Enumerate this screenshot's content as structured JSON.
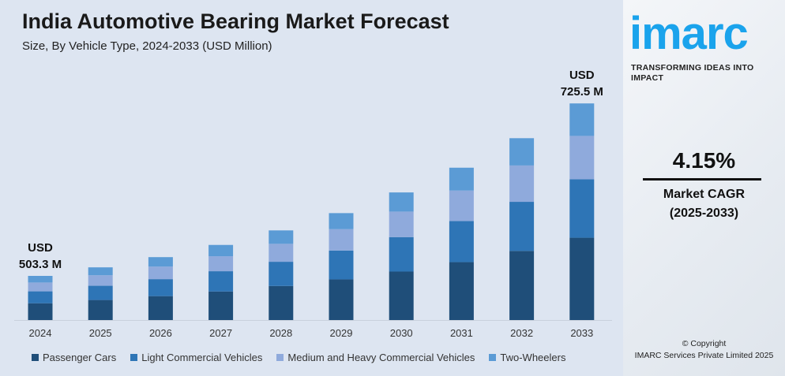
{
  "header": {
    "title": "India Automotive Bearing Market Forecast",
    "subtitle": "Size, By Vehicle Type, 2024-2033 (USD Million)"
  },
  "chart_data": {
    "type": "bar",
    "stacked": true,
    "title": "India Automotive Bearing Market Forecast",
    "subtitle": "Size, By Vehicle Type, 2024-2033 (USD Million)",
    "categories": [
      "2024",
      "2025",
      "2026",
      "2027",
      "2028",
      "2029",
      "2030",
      "2031",
      "2032",
      "2033"
    ],
    "series": [
      {
        "name": "Passenger Cars",
        "color": "#1f4e79",
        "values": [
          191.3,
          199.2,
          207.5,
          216.1,
          225.1,
          234.4,
          244.1,
          254.3,
          264.8,
          275.7
        ]
      },
      {
        "name": "Light Commercial Vehicles",
        "color": "#2e75b6",
        "values": [
          135.9,
          141.5,
          147.4,
          153.5,
          159.9,
          166.5,
          173.4,
          180.7,
          188.2,
          195.9
        ]
      },
      {
        "name": "Medium and Heavy Commercial Vehicles",
        "color": "#8faadc",
        "values": [
          100.7,
          104.8,
          109.2,
          113.7,
          118.5,
          123.4,
          128.5,
          133.8,
          139.4,
          145.1
        ]
      },
      {
        "name": "Two-Wheelers",
        "color": "#5b9bd5",
        "values": [
          75.4,
          78.7,
          81.9,
          85.4,
          88.8,
          92.5,
          96.4,
          100.3,
          104.5,
          108.8
        ]
      }
    ],
    "totals": [
      503.3,
      524.2,
      546.0,
      568.7,
      592.3,
      616.8,
      642.4,
      669.1,
      696.9,
      725.5
    ],
    "annotations": [
      {
        "category": "2024",
        "line1": "USD",
        "line2": "503.3 M"
      },
      {
        "category": "2033",
        "line1": "USD",
        "line2": "725.5 M"
      }
    ],
    "legend": "bottom",
    "grid": false,
    "yaxis_visible": false
  },
  "side": {
    "logo": "imarc",
    "tagline": "TRANSFORMING IDEAS INTO IMPACT",
    "cagr_value": "4.15%",
    "cagr_label": "Market CAGR",
    "cagr_period": "(2025-2033)",
    "copyright": "© Copyright",
    "company": "IMARC Services Private Limited 2025"
  }
}
